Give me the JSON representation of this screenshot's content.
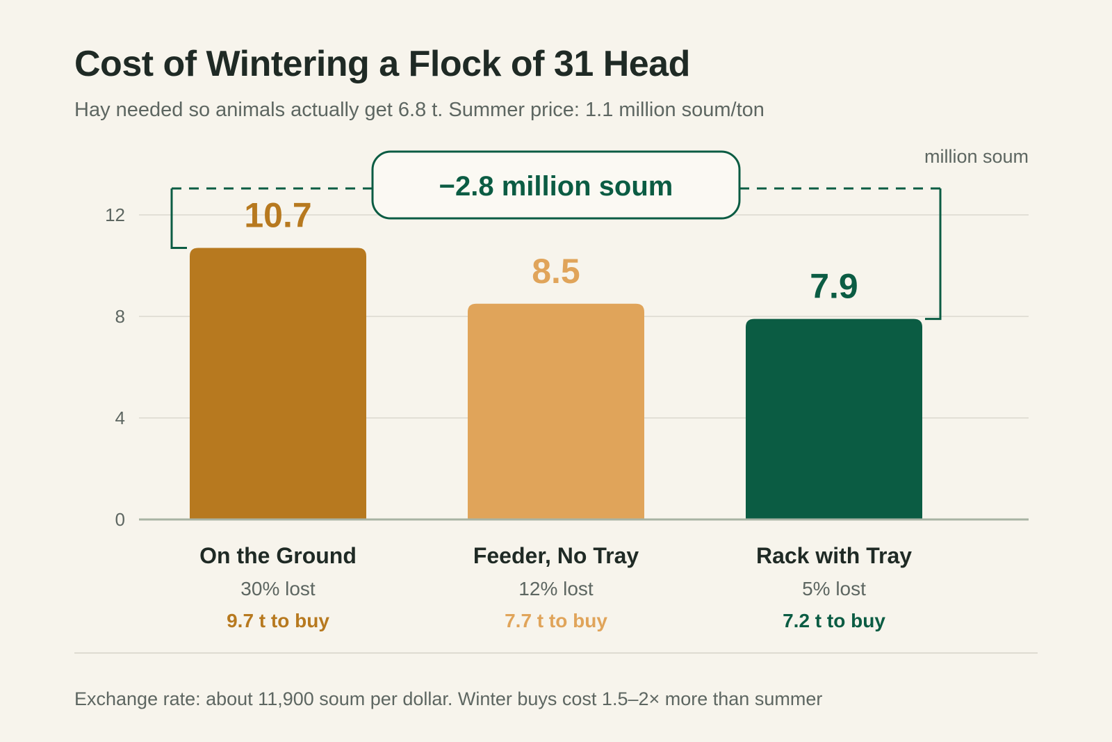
{
  "title": "Cost of Wintering a Flock of 31 Head",
  "subtitle": "Hay needed so animals actually get 6.8 t. Summer price: 1.1 million soum/ton",
  "footnote": "Exchange rate: about 11,900 soum per dollar. Winter buys cost 1.5–2× more than summer",
  "chart_data": {
    "type": "bar",
    "unit_label": "million soum",
    "ylim": [
      0,
      14
    ],
    "yticks": [
      0,
      4,
      8,
      12
    ],
    "grid": true,
    "categories": [
      "On the Ground",
      "Feeder, No Tray",
      "Rack with Tray"
    ],
    "values": [
      10.7,
      8.5,
      7.9
    ],
    "value_labels": [
      "10.7",
      "8.5",
      "7.9"
    ],
    "loss_labels": [
      "30% lost",
      "12% lost",
      "5% lost"
    ],
    "buy_labels": [
      "9.7 t to buy",
      "7.7 t to buy",
      "7.2 t to buy"
    ],
    "colors": [
      "#b7791f",
      "#e0a45a",
      "#0b5c43"
    ],
    "label_colors": [
      "#b7791f",
      "#e0a45a",
      "#0b5c43"
    ],
    "annotation": {
      "text": "−2.8 million soum",
      "from_category": "On the Ground",
      "to_category": "Rack with Tray",
      "color": "#0b5c43"
    }
  }
}
